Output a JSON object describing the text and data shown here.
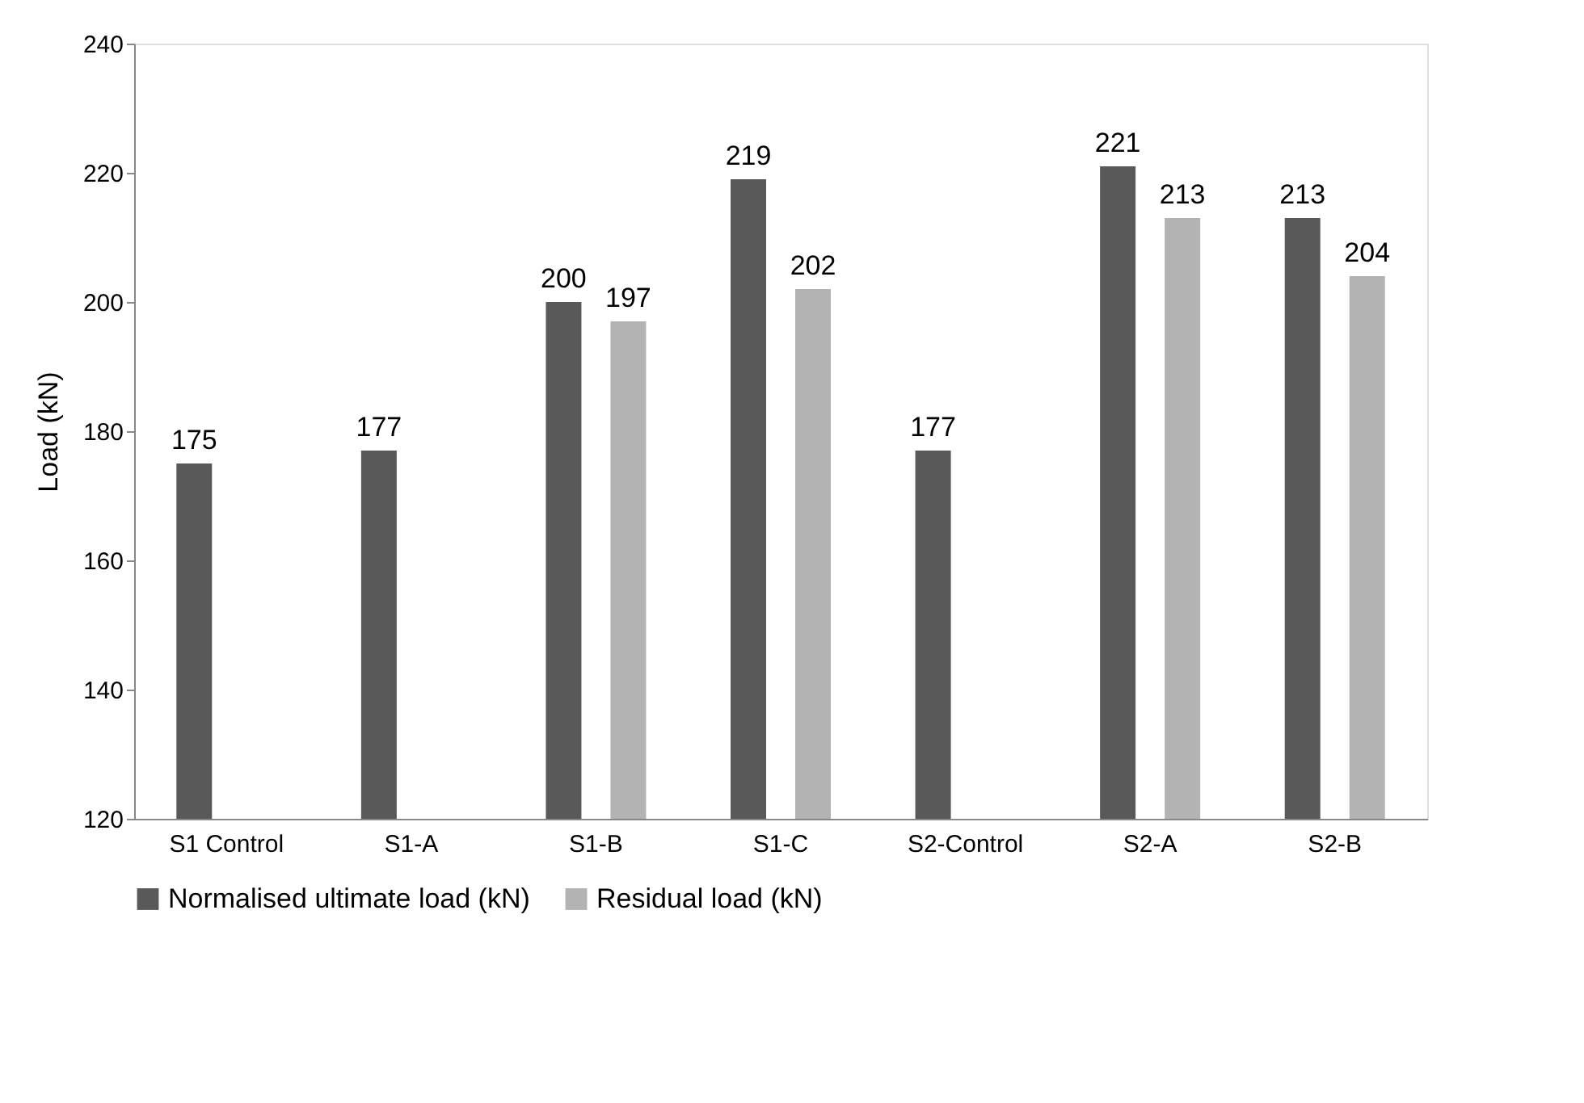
{
  "chart_data": {
    "type": "bar",
    "ylabel": "Load (kN)",
    "categories": [
      "S1 Control",
      "S1-A",
      "S1-B",
      "S1-C",
      "S2-Control",
      "S2-A",
      "S2-B"
    ],
    "series": [
      {
        "name": "Normalised ultimate load (kN)",
        "color": "#595959",
        "values": [
          175,
          177,
          200,
          219,
          177,
          221,
          213
        ]
      },
      {
        "name": "Residual load (kN)",
        "color": "#b3b3b3",
        "values": [
          null,
          null,
          197,
          202,
          null,
          213,
          204
        ]
      }
    ],
    "ylim": [
      120,
      240
    ],
    "yticks": [
      120,
      140,
      160,
      180,
      200,
      220,
      240
    ],
    "grid": false,
    "legend": "bottom",
    "data_labels": true
  }
}
